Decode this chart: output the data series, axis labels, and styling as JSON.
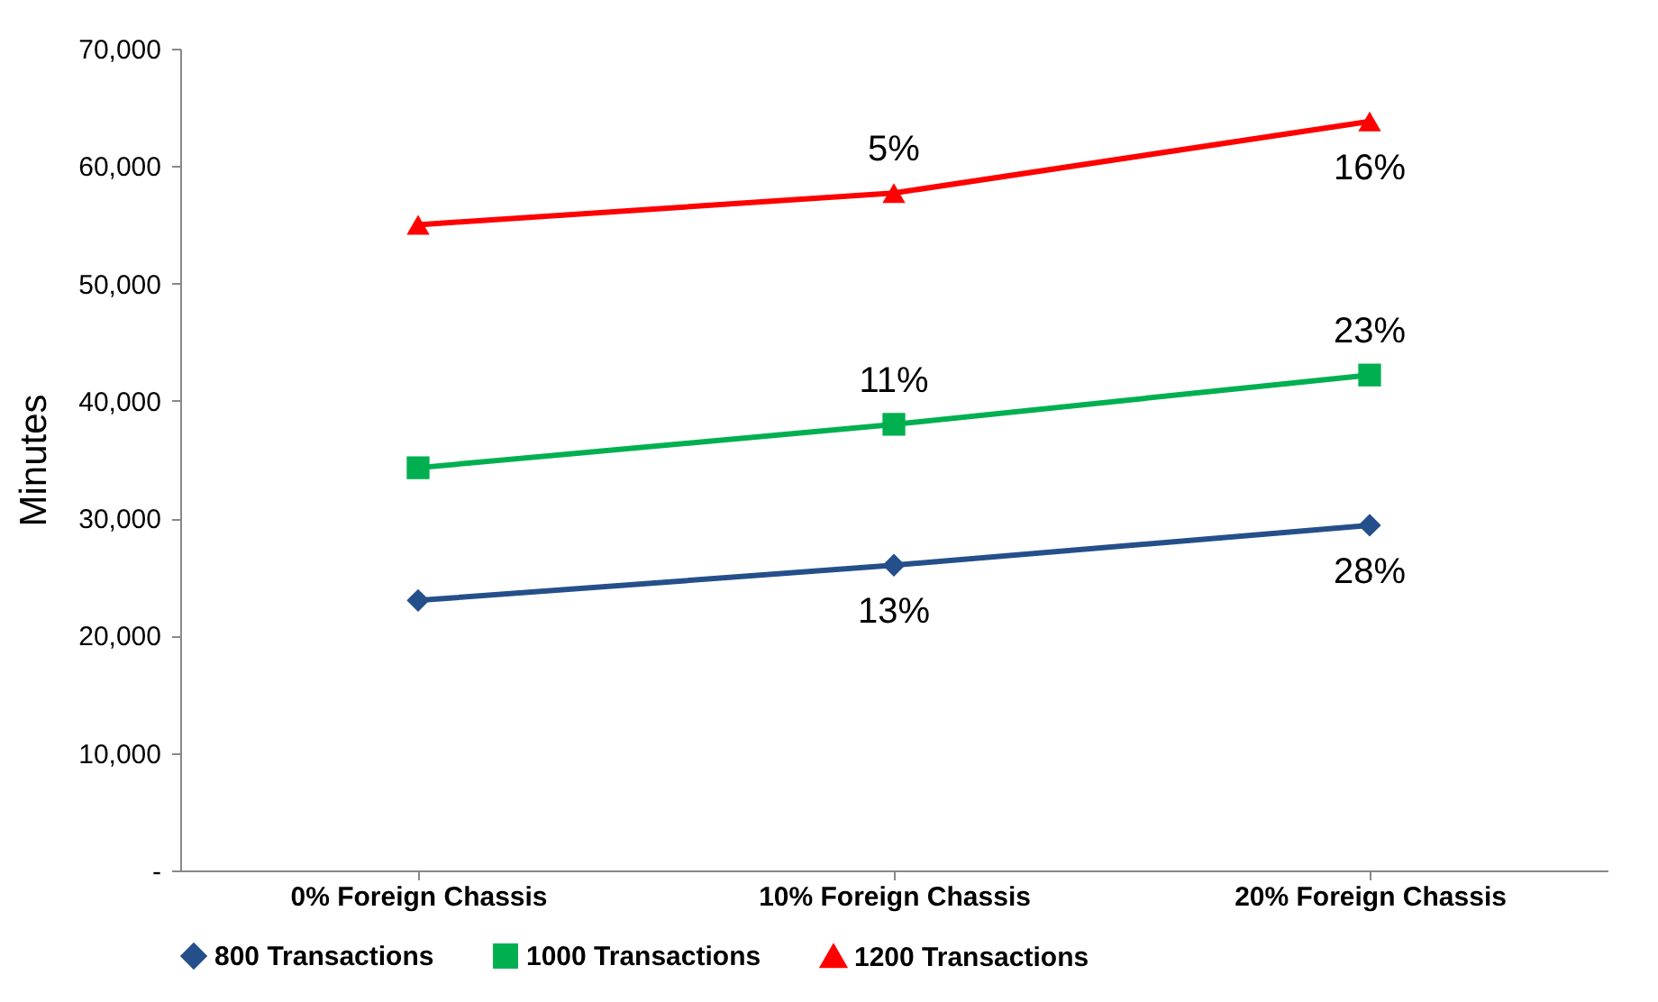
{
  "chart_data": {
    "type": "line",
    "ylabel": "Minutes",
    "categories": [
      "0% Foreign Chassis",
      "10% Foreign Chassis",
      "20% Foreign Chassis"
    ],
    "series": [
      {
        "name": "800 Transactions",
        "color": "#254f8a",
        "marker": "diamond",
        "values": [
          23000,
          26000,
          29400
        ]
      },
      {
        "name": "1000 Transactions",
        "color": "#00b050",
        "marker": "square",
        "values": [
          34300,
          38000,
          42200
        ]
      },
      {
        "name": "1200 Transactions",
        "color": "#ff0000",
        "marker": "triangle",
        "values": [
          55000,
          57700,
          63800
        ]
      }
    ],
    "ylim": [
      0,
      70000
    ],
    "yticks": [
      {
        "value": 0,
        "label": "-"
      },
      {
        "value": 10000,
        "label": "10,000"
      },
      {
        "value": 20000,
        "label": "20,000"
      },
      {
        "value": 30000,
        "label": "30,000"
      },
      {
        "value": 40000,
        "label": "40,000"
      },
      {
        "value": 50000,
        "label": "50,000"
      },
      {
        "value": 60000,
        "label": "60,000"
      },
      {
        "value": 70000,
        "label": "70,000"
      }
    ],
    "grid": false,
    "legend": "bottom",
    "annotations": [
      {
        "text": "5%",
        "x": "10% Foreign Chassis",
        "y": 57700
      },
      {
        "text": "16%",
        "x": "20% Foreign Chassis",
        "y": 63800
      },
      {
        "text": "11%",
        "x": "10% Foreign Chassis",
        "y": 38000
      },
      {
        "text": "23%",
        "x": "20% Foreign Chassis",
        "y": 42200
      },
      {
        "text": "13%",
        "x": "10% Foreign Chassis",
        "y": 26000
      },
      {
        "text": "28%",
        "x": "20% Foreign Chassis",
        "y": 29400
      }
    ]
  }
}
